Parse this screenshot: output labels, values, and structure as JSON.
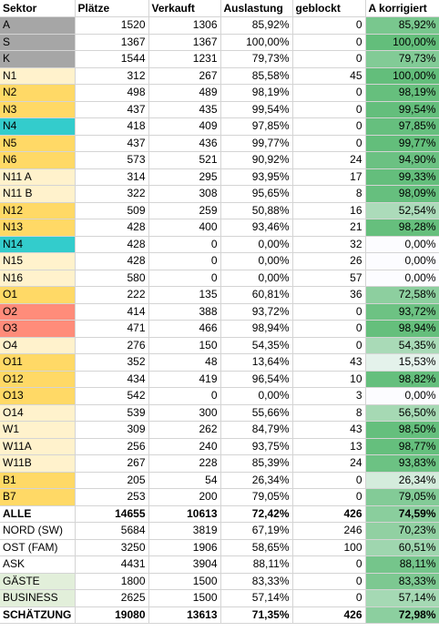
{
  "headers": [
    "Sektor",
    "Plätze",
    "Verkauft",
    "Auslastung",
    "geblockt",
    "A korrigiert"
  ],
  "colors": {
    "gray": "#a6a6a6",
    "orange": "#ffd966",
    "light_yellow": "#fff2cc",
    "teal": "#33cccc",
    "salmon": "#ff8c7a",
    "light_green": "#e2efda",
    "white": "#ffffff"
  },
  "rows": [
    {
      "sektor": "A",
      "plaetze": "1520",
      "verkauft": "1306",
      "auslastung": "85,92%",
      "geblockt": "0",
      "korrigiert": "85,92%",
      "fill": "gray",
      "pct": 85.92
    },
    {
      "sektor": "S",
      "plaetze": "1367",
      "verkauft": "1367",
      "auslastung": "100,00%",
      "geblockt": "0",
      "korrigiert": "100,00%",
      "fill": "gray",
      "pct": 100.0
    },
    {
      "sektor": "K",
      "plaetze": "1544",
      "verkauft": "1231",
      "auslastung": "79,73%",
      "geblockt": "0",
      "korrigiert": "79,73%",
      "fill": "gray",
      "pct": 79.73
    },
    {
      "sektor": "N1",
      "plaetze": "312",
      "verkauft": "267",
      "auslastung": "85,58%",
      "geblockt": "45",
      "korrigiert": "100,00%",
      "fill": "light_yellow",
      "pct": 100.0
    },
    {
      "sektor": "N2",
      "plaetze": "498",
      "verkauft": "489",
      "auslastung": "98,19%",
      "geblockt": "0",
      "korrigiert": "98,19%",
      "fill": "orange",
      "pct": 98.19
    },
    {
      "sektor": "N3",
      "plaetze": "437",
      "verkauft": "435",
      "auslastung": "99,54%",
      "geblockt": "0",
      "korrigiert": "99,54%",
      "fill": "orange",
      "pct": 99.54
    },
    {
      "sektor": "N4",
      "plaetze": "418",
      "verkauft": "409",
      "auslastung": "97,85%",
      "geblockt": "0",
      "korrigiert": "97,85%",
      "fill": "teal",
      "pct": 97.85
    },
    {
      "sektor": "N5",
      "plaetze": "437",
      "verkauft": "436",
      "auslastung": "99,77%",
      "geblockt": "0",
      "korrigiert": "99,77%",
      "fill": "orange",
      "pct": 99.77
    },
    {
      "sektor": "N6",
      "plaetze": "573",
      "verkauft": "521",
      "auslastung": "90,92%",
      "geblockt": "24",
      "korrigiert": "94,90%",
      "fill": "orange",
      "pct": 94.9
    },
    {
      "sektor": "N11 A",
      "plaetze": "314",
      "verkauft": "295",
      "auslastung": "93,95%",
      "geblockt": "17",
      "korrigiert": "99,33%",
      "fill": "light_yellow",
      "pct": 99.33
    },
    {
      "sektor": "N11 B",
      "plaetze": "322",
      "verkauft": "308",
      "auslastung": "95,65%",
      "geblockt": "8",
      "korrigiert": "98,09%",
      "fill": "light_yellow",
      "pct": 98.09
    },
    {
      "sektor": "N12",
      "plaetze": "509",
      "verkauft": "259",
      "auslastung": "50,88%",
      "geblockt": "16",
      "korrigiert": "52,54%",
      "fill": "orange",
      "pct": 52.54
    },
    {
      "sektor": "N13",
      "plaetze": "428",
      "verkauft": "400",
      "auslastung": "93,46%",
      "geblockt": "21",
      "korrigiert": "98,28%",
      "fill": "orange",
      "pct": 98.28
    },
    {
      "sektor": "N14",
      "plaetze": "428",
      "verkauft": "0",
      "auslastung": "0,00%",
      "geblockt": "32",
      "korrigiert": "0,00%",
      "fill": "teal",
      "pct": 0.0
    },
    {
      "sektor": "N15",
      "plaetze": "428",
      "verkauft": "0",
      "auslastung": "0,00%",
      "geblockt": "26",
      "korrigiert": "0,00%",
      "fill": "light_yellow",
      "pct": 0.0
    },
    {
      "sektor": "N16",
      "plaetze": "580",
      "verkauft": "0",
      "auslastung": "0,00%",
      "geblockt": "57",
      "korrigiert": "0,00%",
      "fill": "light_yellow",
      "pct": 0.0
    },
    {
      "sektor": "O1",
      "plaetze": "222",
      "verkauft": "135",
      "auslastung": "60,81%",
      "geblockt": "36",
      "korrigiert": "72,58%",
      "fill": "orange",
      "pct": 72.58
    },
    {
      "sektor": "O2",
      "plaetze": "414",
      "verkauft": "388",
      "auslastung": "93,72%",
      "geblockt": "0",
      "korrigiert": "93,72%",
      "fill": "salmon",
      "pct": 93.72
    },
    {
      "sektor": "O3",
      "plaetze": "471",
      "verkauft": "466",
      "auslastung": "98,94%",
      "geblockt": "0",
      "korrigiert": "98,94%",
      "fill": "salmon",
      "pct": 98.94
    },
    {
      "sektor": "O4",
      "plaetze": "276",
      "verkauft": "150",
      "auslastung": "54,35%",
      "geblockt": "0",
      "korrigiert": "54,35%",
      "fill": "light_yellow",
      "pct": 54.35
    },
    {
      "sektor": "O11",
      "plaetze": "352",
      "verkauft": "48",
      "auslastung": "13,64%",
      "geblockt": "43",
      "korrigiert": "15,53%",
      "fill": "orange",
      "pct": 15.53
    },
    {
      "sektor": "O12",
      "plaetze": "434",
      "verkauft": "419",
      "auslastung": "96,54%",
      "geblockt": "10",
      "korrigiert": "98,82%",
      "fill": "orange",
      "pct": 98.82
    },
    {
      "sektor": "O13",
      "plaetze": "542",
      "verkauft": "0",
      "auslastung": "0,00%",
      "geblockt": "3",
      "korrigiert": "0,00%",
      "fill": "orange",
      "pct": 0.0
    },
    {
      "sektor": "O14",
      "plaetze": "539",
      "verkauft": "300",
      "auslastung": "55,66%",
      "geblockt": "8",
      "korrigiert": "56,50%",
      "fill": "light_yellow",
      "pct": 56.5
    },
    {
      "sektor": "W1",
      "plaetze": "309",
      "verkauft": "262",
      "auslastung": "84,79%",
      "geblockt": "43",
      "korrigiert": "98,50%",
      "fill": "light_yellow",
      "pct": 98.5
    },
    {
      "sektor": "W11A",
      "plaetze": "256",
      "verkauft": "240",
      "auslastung": "93,75%",
      "geblockt": "13",
      "korrigiert": "98,77%",
      "fill": "light_yellow",
      "pct": 98.77
    },
    {
      "sektor": "W11B",
      "plaetze": "267",
      "verkauft": "228",
      "auslastung": "85,39%",
      "geblockt": "24",
      "korrigiert": "93,83%",
      "fill": "light_yellow",
      "pct": 93.83
    },
    {
      "sektor": "B1",
      "plaetze": "205",
      "verkauft": "54",
      "auslastung": "26,34%",
      "geblockt": "0",
      "korrigiert": "26,34%",
      "fill": "orange",
      "pct": 26.34
    },
    {
      "sektor": "B7",
      "plaetze": "253",
      "verkauft": "200",
      "auslastung": "79,05%",
      "geblockt": "0",
      "korrigiert": "79,05%",
      "fill": "orange",
      "pct": 79.05
    },
    {
      "sektor": "ALLE",
      "plaetze": "14655",
      "verkauft": "10613",
      "auslastung": "72,42%",
      "geblockt": "426",
      "korrigiert": "74,59%",
      "fill": "white",
      "pct": 74.59,
      "bold": true
    },
    {
      "sektor": "NORD (SW)",
      "plaetze": "5684",
      "verkauft": "3819",
      "auslastung": "67,19%",
      "geblockt": "246",
      "korrigiert": "70,23%",
      "fill": "white",
      "pct": 70.23
    },
    {
      "sektor": "OST (FAM)",
      "plaetze": "3250",
      "verkauft": "1906",
      "auslastung": "58,65%",
      "geblockt": "100",
      "korrigiert": "60,51%",
      "fill": "white",
      "pct": 60.51
    },
    {
      "sektor": "ASK",
      "plaetze": "4431",
      "verkauft": "3904",
      "auslastung": "88,11%",
      "geblockt": "0",
      "korrigiert": "88,11%",
      "fill": "white",
      "pct": 88.11
    },
    {
      "sektor": "GÄSTE",
      "plaetze": "1800",
      "verkauft": "1500",
      "auslastung": "83,33%",
      "geblockt": "0",
      "korrigiert": "83,33%",
      "fill": "light_green",
      "pct": 83.33
    },
    {
      "sektor": "BUSINESS",
      "plaetze": "2625",
      "verkauft": "1500",
      "auslastung": "57,14%",
      "geblockt": "0",
      "korrigiert": "57,14%",
      "fill": "light_green",
      "pct": 57.14
    },
    {
      "sektor": "SCHÄTZUNG",
      "plaetze": "19080",
      "verkauft": "13613",
      "auslastung": "71,35%",
      "geblockt": "426",
      "korrigiert": "72,98%",
      "fill": "white",
      "pct": 72.98,
      "bold": true
    }
  ]
}
